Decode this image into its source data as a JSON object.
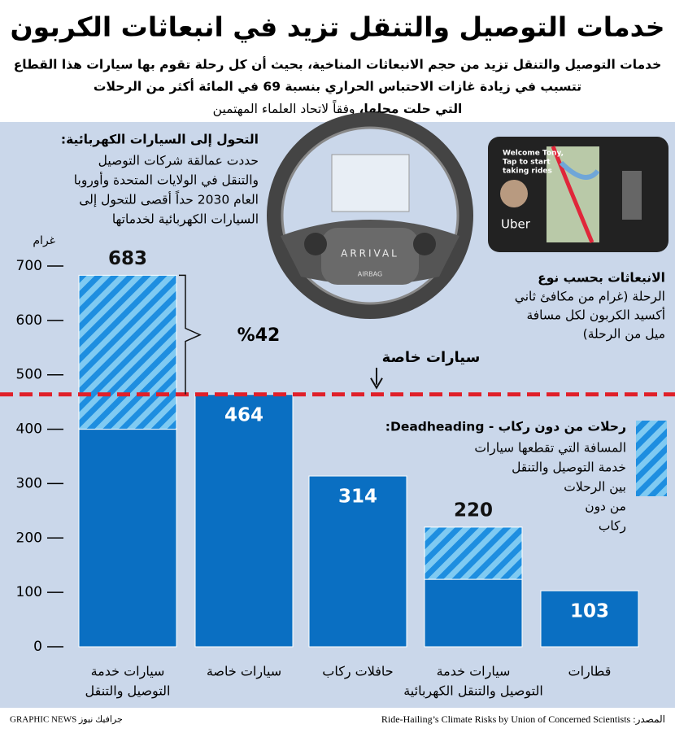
{
  "chart_data": {
    "type": "stacked-bar",
    "title": "خدمات التوصيل والتنقل تزيد في انبعاثات الكربون",
    "subtitle_lines": [
      "خدمات التوصيل والتنقل تزيد من حجم الانبعاثات المناخية، بحيث أن كل رحلة تقوم بها سيارات هذا القطاع",
      "تتسبب في زيادة غازات الاحتباس الحراري بنسبة 69 في المائة أكثر من الرحلات",
      "التي حلت محلها،"
    ],
    "subtitle_end": "وفقاً لاتحاد العلماء المهتمين",
    "ev_note_title": "التحول إلى السيارات الكهربائية:",
    "ev_note_lines": [
      "حددت عمالقة شركات التوصيل",
      "والتنقل في الولايات المتحدة وأوروبا",
      "العام 2030 حداً أقصى للتحول إلى",
      "السيارات الكهربائية لخدماتها"
    ],
    "emissions_note_lines": [
      "الانبعاثات بحسب نوع",
      "الرحلة (غرام من مكافئ ثاني",
      "أكسيد الكربون لكل مسافة",
      "ميل من الرحلة)"
    ],
    "deadhead_note_lines": [
      "المسافة التي تقطعها سيارات",
      "خدمة التوصيل والتنقل",
      "بين الرحلات",
      "من دون",
      "ركاب"
    ],
    "y_axis_label": "غرام",
    "reference_label": "سيارات خاصة",
    "difference_annotation": "%42",
    "phone_texts": [
      "Welcome Tony,",
      "Tap to start",
      "taking rides",
      "Uber"
    ],
    "wheel_texts": [
      "ARRIVAL",
      "AIRBAG"
    ],
    "source": "المصدر: Ride-Hailing’s Climate Risks by Union of Concerned Scientists",
    "credit": "GRAPHIC NEWS جرافيك نيوز",
    "categories": [
      [
        "سيارات خدمة",
        "التوصيل والتنقل"
      ],
      [
        "سيارات خاصة"
      ],
      [
        "حافلات ركاب"
      ],
      [
        "سيارات خدمة",
        "التوصيل والتنقل الكهربائية"
      ],
      [
        "قطارات"
      ]
    ],
    "series": [
      {
        "color": "#0a6fc2",
        "values": [
          400,
          464,
          314,
          124,
          103
        ]
      },
      {
        "name": "رحلات من دون ركاب - Deadheading:",
        "color": "#1e8ee0",
        "values": [
          283,
          null,
          null,
          96,
          null
        ]
      }
    ],
    "totals": [
      683,
      464,
      314,
      220,
      103
    ],
    "ylim": [
      0,
      700
    ],
    "yticks": [
      0,
      100,
      200,
      300,
      400,
      500,
      600,
      700
    ]
  }
}
